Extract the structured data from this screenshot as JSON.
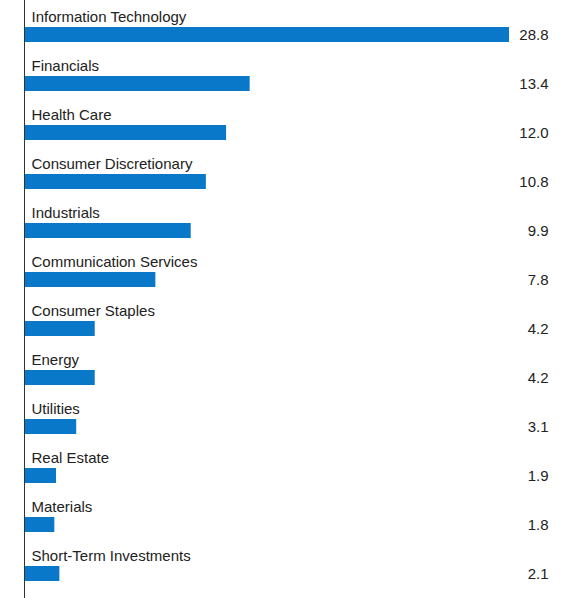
{
  "chart_data": {
    "type": "bar",
    "orientation": "horizontal",
    "categories": [
      "Information Technology",
      "Financials",
      "Health Care",
      "Consumer Discretionary",
      "Industrials",
      "Communication Services",
      "Consumer Staples",
      "Energy",
      "Utilities",
      "Real Estate",
      "Materials",
      "Short-Term Investments"
    ],
    "values": [
      28.8,
      13.4,
      12.0,
      10.8,
      9.9,
      7.8,
      4.2,
      4.2,
      3.1,
      1.9,
      1.8,
      2.1
    ],
    "value_labels": [
      "28.8",
      "13.4",
      "12.0",
      "10.8",
      "9.9",
      "7.8",
      "4.2",
      "4.2",
      "3.1",
      "1.9",
      "1.8",
      "2.1"
    ],
    "color": "#0a78c8",
    "xlim": [
      0,
      28.8
    ],
    "data_labels": true,
    "tick_labels": false,
    "grid": false
  }
}
